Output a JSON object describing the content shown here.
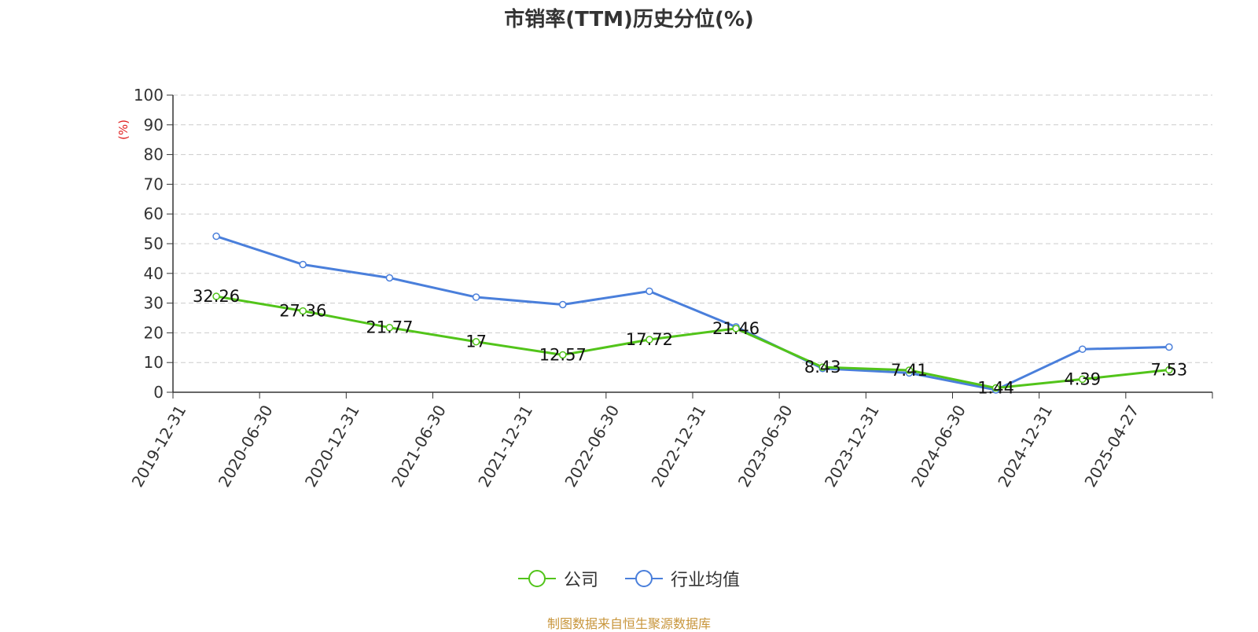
{
  "chart_data": {
    "type": "line",
    "title": "市销率(TTM)历史分位(%)",
    "ylabel": "(%)",
    "xlabel": "",
    "ylim": [
      0,
      100
    ],
    "yticks": [
      0,
      10,
      20,
      30,
      40,
      50,
      60,
      70,
      80,
      90,
      100
    ],
    "grid": true,
    "legend_position": "bottom",
    "categories": [
      "2019-12-31",
      "2020-06-30",
      "2020-12-31",
      "2021-06-30",
      "2021-12-31",
      "2022-06-30",
      "2022-12-31",
      "2023-06-30",
      "2023-12-31",
      "2024-06-30",
      "2024-12-31",
      "2025-04-27"
    ],
    "series": [
      {
        "name": "公司",
        "color": "#52c41a",
        "values": [
          32.26,
          27.36,
          21.77,
          17,
          12.57,
          17.72,
          21.46,
          8.43,
          7.41,
          1.44,
          4.39,
          7.53
        ],
        "labels": [
          "32.26",
          "27.36",
          "21.77",
          "17",
          "12.57",
          "17.72",
          "21.46",
          "8.43",
          "7.41",
          "1.44",
          "4.39",
          "7.53"
        ]
      },
      {
        "name": "行业均值",
        "color": "#4a7fdb",
        "values": [
          52.5,
          43,
          38.5,
          32,
          29.5,
          34,
          22,
          8,
          6.5,
          0.8,
          14.5,
          15.2
        ]
      }
    ],
    "source": "制图数据来自恒生聚源数据库"
  }
}
